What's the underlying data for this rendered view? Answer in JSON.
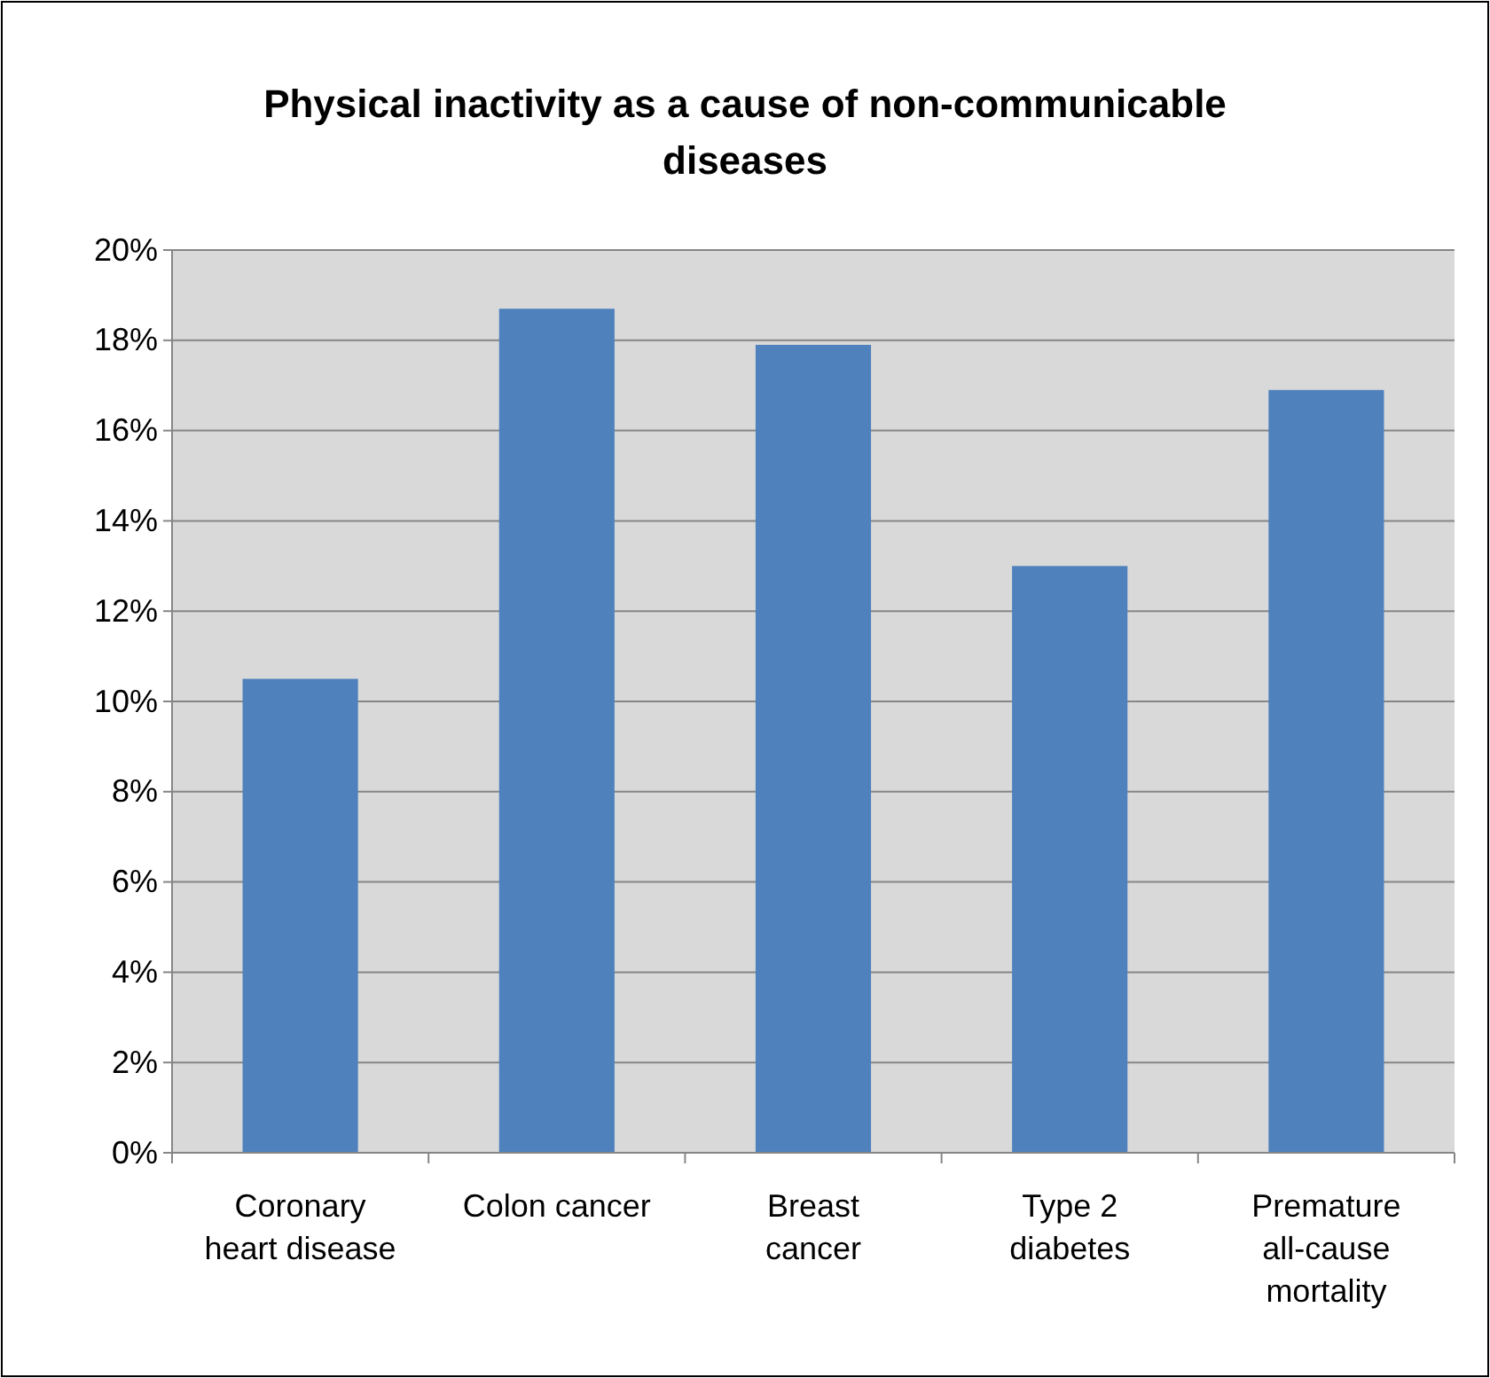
{
  "chart_data": {
    "type": "bar",
    "title": "Physical inactivity as a cause of non-communicable diseases",
    "categories": [
      "Coronary heart disease",
      "Colon cancer",
      "Breast cancer",
      "Type 2 diabetes",
      "Premature all-cause mortality"
    ],
    "values": [
      10.5,
      18.7,
      17.9,
      13.0,
      16.9
    ],
    "color": "#4f81bd",
    "ylim": [
      0,
      20
    ],
    "yticks": [
      {
        "value": 0,
        "label": "0%"
      },
      {
        "value": 2,
        "label": "2%"
      },
      {
        "value": 4,
        "label": "4%"
      },
      {
        "value": 6,
        "label": "6%"
      },
      {
        "value": 8,
        "label": "8%"
      },
      {
        "value": 10,
        "label": "10%"
      },
      {
        "value": 12,
        "label": "12%"
      },
      {
        "value": 14,
        "label": "14%"
      },
      {
        "value": 16,
        "label": "16%"
      },
      {
        "value": 18,
        "label": "18%"
      },
      {
        "value": 20,
        "label": "20%"
      }
    ],
    "grid": "y"
  }
}
